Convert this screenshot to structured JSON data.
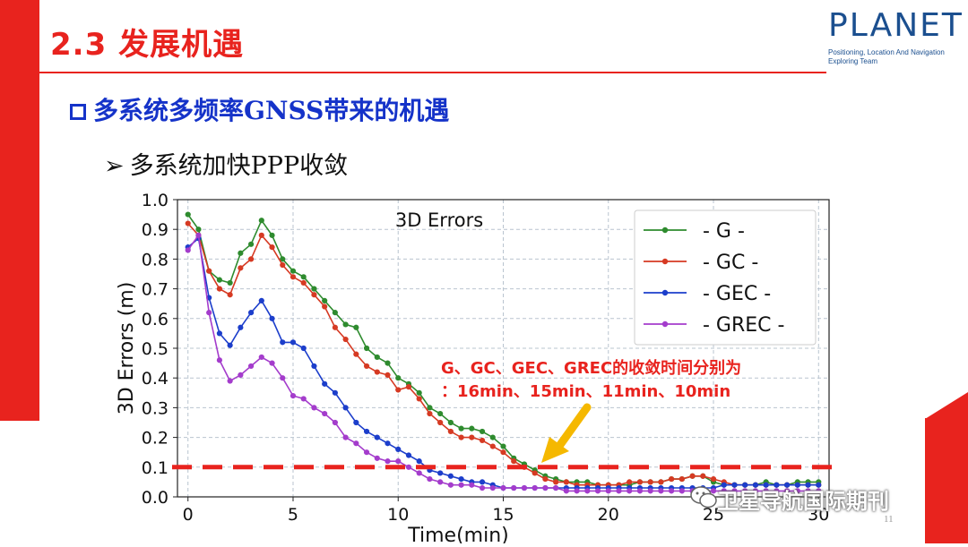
{
  "header": {
    "title": "2.3 发展机遇",
    "logo_word": "PLANET",
    "logo_sub": "Positioning, Location And Navigation Exploring Team"
  },
  "content": {
    "heading": "多系统多频率GNSS带来的机遇",
    "bullet": "多系统加快PPP收敛",
    "bullet_marker": "➢"
  },
  "annotation": {
    "line1": "G、GC、GEC、GREC的收敛时间分别为",
    "line2": "：16min、15min、11min、10min"
  },
  "footer": {
    "page_number": "11",
    "watermark": "卫星导航国际期刊"
  },
  "colors": {
    "brand_red": "#e8231e",
    "heading_blue": "#1533c9",
    "annotation_red": "#e8231e",
    "arrow_yellow": "#f5b800"
  },
  "chart_data": {
    "type": "line",
    "title": "3D Errors",
    "xlabel": "Time(min)",
    "ylabel": "3D Errors (m)",
    "xlim": [
      -0.5,
      30.5
    ],
    "ylim": [
      0,
      1.0
    ],
    "xticks": [
      0,
      5,
      10,
      15,
      20,
      25,
      30
    ],
    "yticks": [
      0.0,
      0.1,
      0.2,
      0.3,
      0.4,
      0.5,
      0.6,
      0.7,
      0.8,
      0.9,
      1.0
    ],
    "grid": true,
    "legend_position": "top-right",
    "threshold": 0.1,
    "series": [
      {
        "name": "- G -",
        "color": "#2e8b2e",
        "x": [
          0,
          0.5,
          1,
          1.5,
          2,
          2.5,
          3,
          3.5,
          4,
          4.5,
          5,
          5.5,
          6,
          6.5,
          7,
          7.5,
          8,
          8.5,
          9,
          9.5,
          10,
          10.5,
          11,
          11.5,
          12,
          12.5,
          13,
          13.5,
          14,
          14.5,
          15,
          15.5,
          16,
          16.5,
          17,
          17.5,
          18,
          18.5,
          19,
          19.5,
          20,
          20.5,
          21,
          21.5,
          22,
          22.5,
          23,
          23.5,
          24,
          24.5,
          25,
          25.5,
          26,
          26.5,
          27,
          27.5,
          28,
          28.5,
          29,
          29.5,
          30
        ],
        "y": [
          0.95,
          0.9,
          0.76,
          0.73,
          0.72,
          0.82,
          0.85,
          0.93,
          0.88,
          0.8,
          0.76,
          0.74,
          0.7,
          0.66,
          0.62,
          0.58,
          0.57,
          0.5,
          0.47,
          0.45,
          0.4,
          0.38,
          0.35,
          0.3,
          0.28,
          0.25,
          0.23,
          0.23,
          0.22,
          0.2,
          0.17,
          0.13,
          0.11,
          0.09,
          0.07,
          0.06,
          0.05,
          0.05,
          0.05,
          0.04,
          0.04,
          0.04,
          0.04,
          0.05,
          0.05,
          0.05,
          0.06,
          0.06,
          0.07,
          0.07,
          0.05,
          0.04,
          0.04,
          0.04,
          0.04,
          0.05,
          0.04,
          0.04,
          0.05,
          0.05,
          0.05
        ]
      },
      {
        "name": "- GC -",
        "color": "#d63a23",
        "x": [
          0,
          0.5,
          1,
          1.5,
          2,
          2.5,
          3,
          3.5,
          4,
          4.5,
          5,
          5.5,
          6,
          6.5,
          7,
          7.5,
          8,
          8.5,
          9,
          9.5,
          10,
          10.5,
          11,
          11.5,
          12,
          12.5,
          13,
          13.5,
          14,
          14.5,
          15,
          15.5,
          16,
          16.5,
          17,
          17.5,
          18,
          18.5,
          19,
          19.5,
          20,
          20.5,
          21,
          21.5,
          22,
          22.5,
          23,
          23.5,
          24,
          24.5,
          25,
          25.5,
          26,
          26.5,
          27,
          27.5,
          28,
          28.5,
          29,
          29.5,
          30
        ],
        "y": [
          0.92,
          0.88,
          0.76,
          0.7,
          0.68,
          0.77,
          0.8,
          0.88,
          0.84,
          0.78,
          0.74,
          0.72,
          0.68,
          0.64,
          0.57,
          0.53,
          0.48,
          0.44,
          0.42,
          0.41,
          0.36,
          0.37,
          0.33,
          0.28,
          0.25,
          0.22,
          0.2,
          0.2,
          0.19,
          0.17,
          0.15,
          0.12,
          0.1,
          0.08,
          0.06,
          0.05,
          0.05,
          0.04,
          0.04,
          0.04,
          0.04,
          0.04,
          0.05,
          0.05,
          0.05,
          0.05,
          0.06,
          0.06,
          0.07,
          0.07,
          0.06,
          0.05,
          0.04,
          0.04,
          0.04,
          0.04,
          0.04,
          0.04,
          0.04,
          0.04,
          0.04
        ]
      },
      {
        "name": "- GEC -",
        "color": "#1c3ecb",
        "x": [
          0,
          0.5,
          1,
          1.5,
          2,
          2.5,
          3,
          3.5,
          4,
          4.5,
          5,
          5.5,
          6,
          6.5,
          7,
          7.5,
          8,
          8.5,
          9,
          9.5,
          10,
          10.5,
          11,
          11.5,
          12,
          12.5,
          13,
          13.5,
          14,
          14.5,
          15,
          15.5,
          16,
          16.5,
          17,
          17.5,
          18,
          18.5,
          19,
          19.5,
          20,
          20.5,
          21,
          21.5,
          22,
          22.5,
          23,
          23.5,
          24,
          24.5,
          25,
          25.5,
          26,
          26.5,
          27,
          27.5,
          28,
          28.5,
          29,
          29.5,
          30
        ],
        "y": [
          0.84,
          0.87,
          0.67,
          0.55,
          0.51,
          0.57,
          0.62,
          0.66,
          0.6,
          0.52,
          0.52,
          0.5,
          0.44,
          0.38,
          0.35,
          0.3,
          0.25,
          0.22,
          0.2,
          0.18,
          0.16,
          0.14,
          0.12,
          0.09,
          0.08,
          0.07,
          0.06,
          0.05,
          0.05,
          0.04,
          0.03,
          0.03,
          0.03,
          0.03,
          0.03,
          0.03,
          0.03,
          0.03,
          0.03,
          0.03,
          0.03,
          0.03,
          0.03,
          0.03,
          0.03,
          0.03,
          0.03,
          0.03,
          0.03,
          0.03,
          0.03,
          0.04,
          0.04,
          0.04,
          0.04,
          0.04,
          0.04,
          0.04,
          0.04,
          0.04,
          0.04
        ]
      },
      {
        "name": "- GREC -",
        "color": "#a43ccc",
        "x": [
          0,
          0.5,
          1,
          1.5,
          2,
          2.5,
          3,
          3.5,
          4,
          4.5,
          5,
          5.5,
          6,
          6.5,
          7,
          7.5,
          8,
          8.5,
          9,
          9.5,
          10,
          10.5,
          11,
          11.5,
          12,
          12.5,
          13,
          13.5,
          14,
          14.5,
          15,
          15.5,
          16,
          16.5,
          17,
          17.5,
          18,
          18.5,
          19,
          19.5,
          20,
          20.5,
          21,
          21.5,
          22,
          22.5,
          23,
          23.5,
          24,
          24.5,
          25,
          25.5,
          26,
          26.5,
          27,
          27.5,
          28,
          28.5,
          29,
          29.5,
          30
        ],
        "y": [
          0.83,
          0.88,
          0.62,
          0.46,
          0.39,
          0.41,
          0.44,
          0.47,
          0.45,
          0.4,
          0.34,
          0.33,
          0.3,
          0.28,
          0.25,
          0.2,
          0.18,
          0.15,
          0.13,
          0.12,
          0.12,
          0.1,
          0.08,
          0.06,
          0.05,
          0.04,
          0.04,
          0.04,
          0.03,
          0.03,
          0.03,
          0.03,
          0.03,
          0.03,
          0.03,
          0.03,
          0.02,
          0.02,
          0.02,
          0.02,
          0.02,
          0.02,
          0.02,
          0.02,
          0.02,
          0.02,
          0.02,
          0.02,
          0.02,
          0.02,
          0.02,
          0.02,
          0.02,
          0.02,
          0.02,
          0.02,
          0.02,
          0.02,
          0.02,
          0.02,
          0.02
        ]
      }
    ]
  }
}
